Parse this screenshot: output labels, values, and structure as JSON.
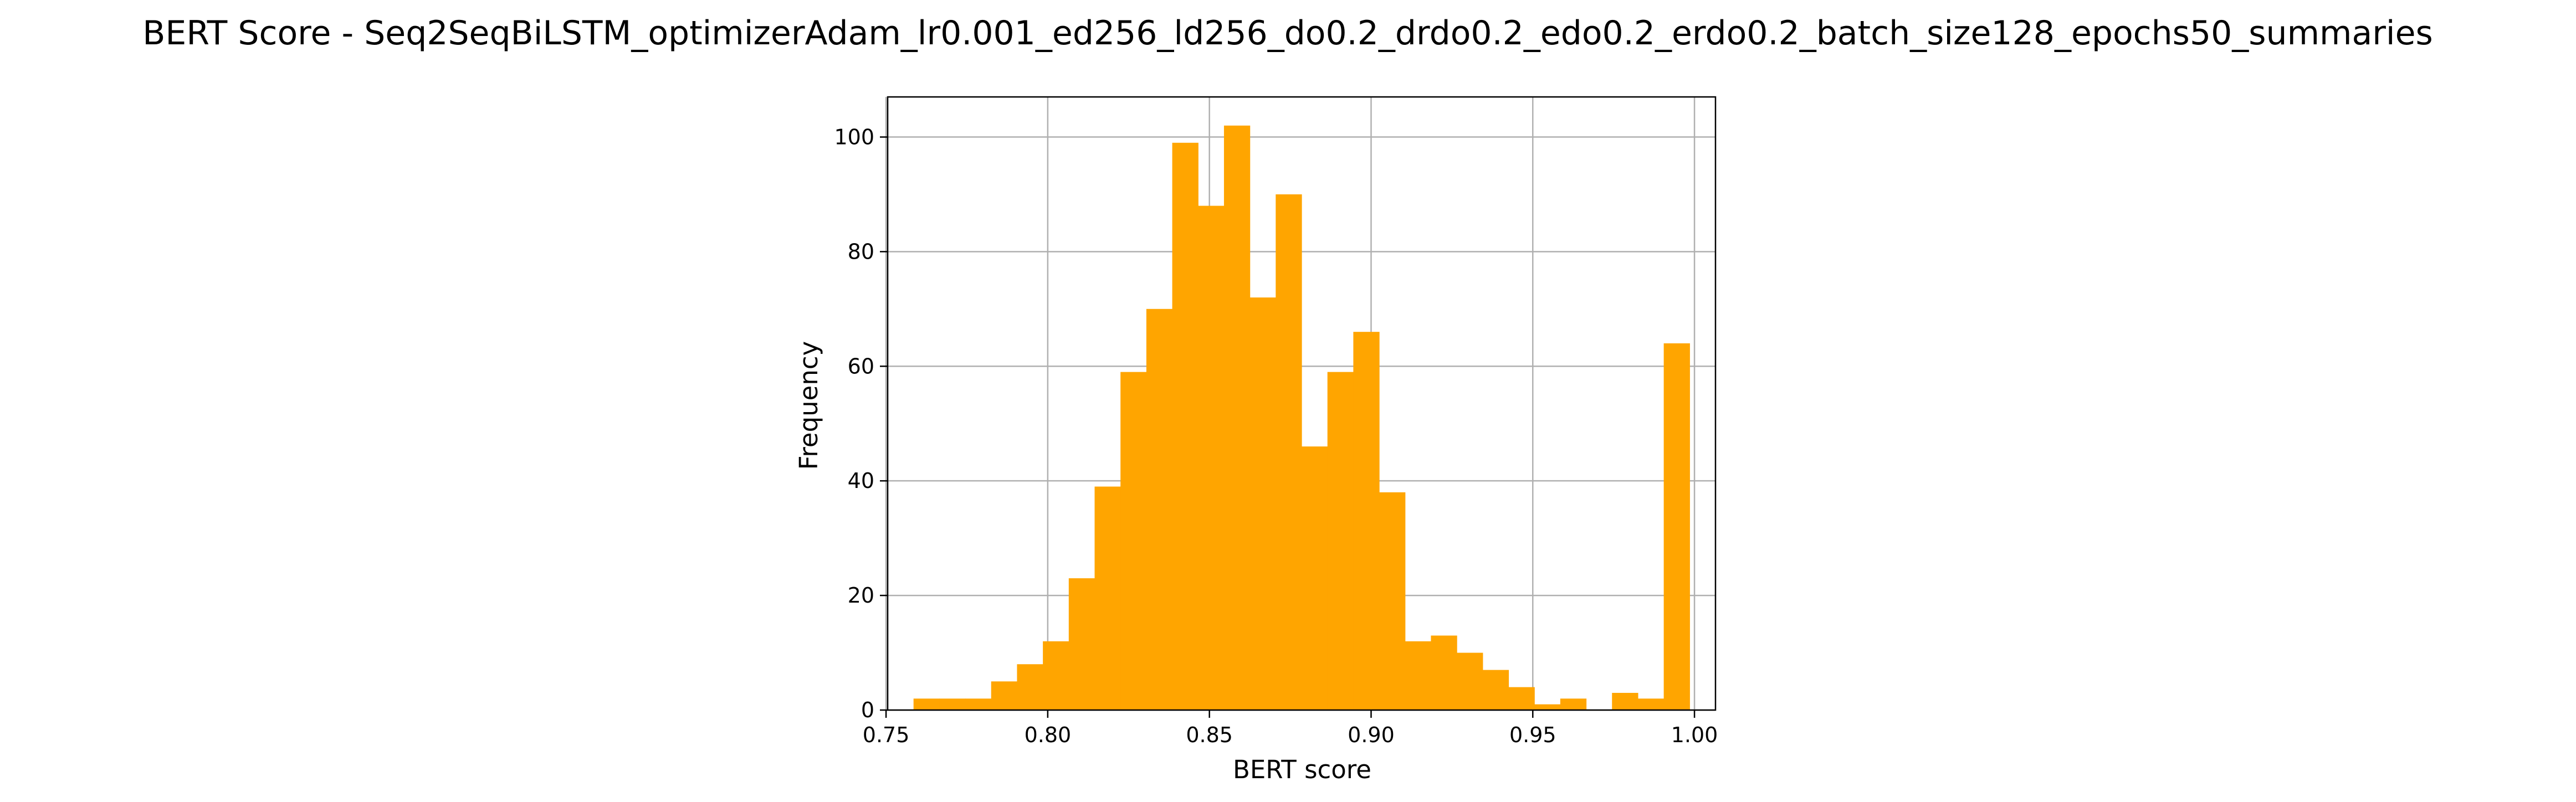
{
  "chart_data": {
    "type": "bar",
    "title": "BERT Score - Seq2SeqBiLSTM_optimizerAdam_lr0.001_ed256_ld256_do0.2_drdo0.2_edo0.2_erdo0.2_batch_size128_epochs50_summaries",
    "xlabel": "BERT score",
    "ylabel": "Frequency",
    "bin_edges": [
      0.7585,
      0.7665,
      0.7745,
      0.7825,
      0.7905,
      0.7985,
      0.8065,
      0.8145,
      0.8225,
      0.8305,
      0.8385,
      0.8465,
      0.8545,
      0.8625,
      0.8705,
      0.8785,
      0.8865,
      0.8945,
      0.9025,
      0.9105,
      0.9185,
      0.9265,
      0.9345,
      0.9425,
      0.9505,
      0.9585,
      0.9665,
      0.9745,
      0.9825,
      0.9905,
      0.9985
    ],
    "values": [
      2,
      2,
      2,
      5,
      8,
      12,
      23,
      39,
      59,
      70,
      99,
      88,
      102,
      72,
      90,
      46,
      59,
      66,
      38,
      12,
      13,
      10,
      7,
      4,
      1,
      2,
      0,
      3,
      2,
      64
    ],
    "xlim": [
      0.7505,
      1.0065
    ],
    "ylim": [
      0,
      107
    ],
    "xticks": [
      0.75,
      0.8,
      0.85,
      0.9,
      0.95,
      1.0
    ],
    "xtick_labels": [
      "0.75",
      "0.80",
      "0.85",
      "0.90",
      "0.95",
      "1.00"
    ],
    "yticks": [
      0,
      20,
      40,
      60,
      80,
      100
    ],
    "ytick_labels": [
      "0",
      "20",
      "40",
      "60",
      "80",
      "100"
    ],
    "grid": true,
    "bar_color": "#ffa500"
  }
}
